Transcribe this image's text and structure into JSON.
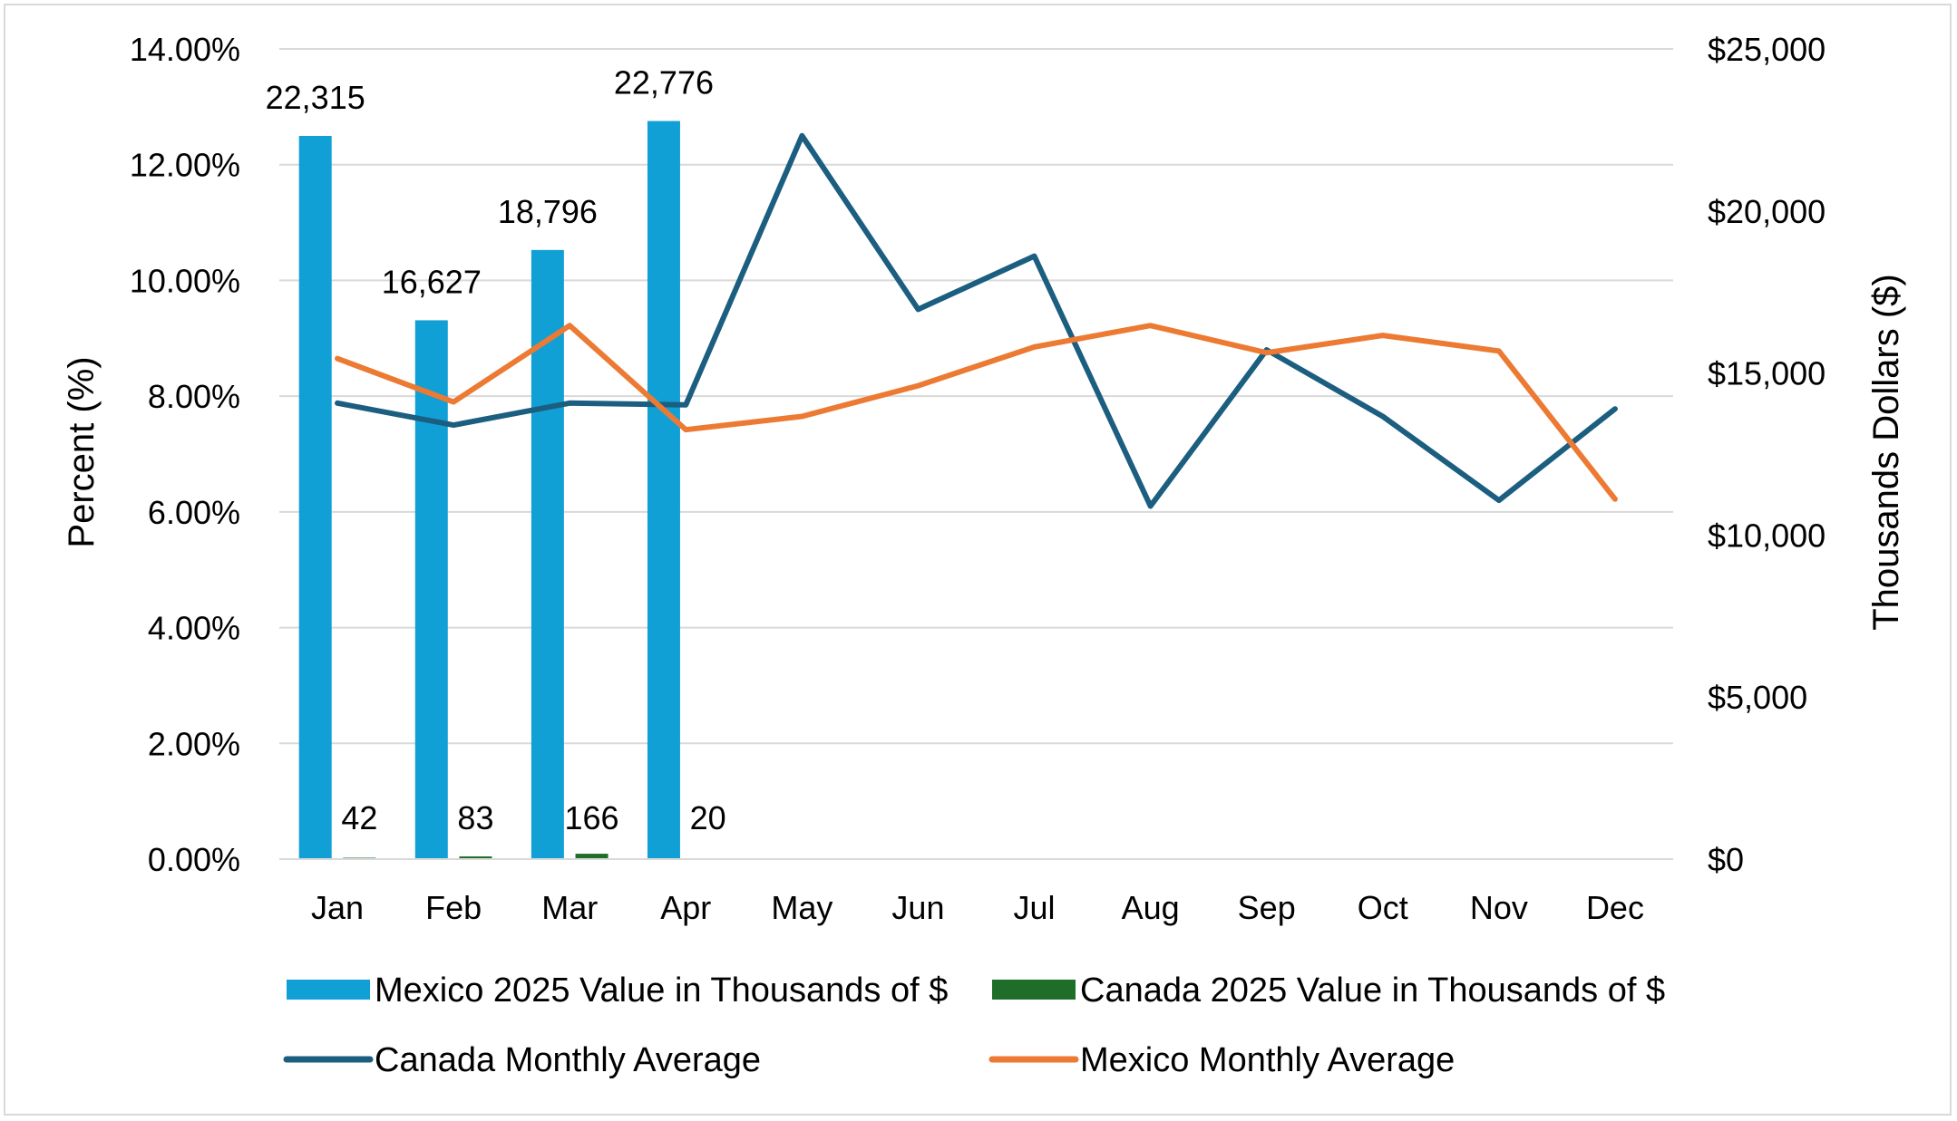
{
  "chart_data": {
    "type": "bar",
    "categories": [
      "Jan",
      "Feb",
      "Mar",
      "Apr",
      "May",
      "Jun",
      "Jul",
      "Aug",
      "Sep",
      "Oct",
      "Nov",
      "Dec"
    ],
    "y_left": {
      "label": "Percent (%)",
      "range": [
        0,
        14
      ],
      "ticks": [
        0,
        2,
        4,
        6,
        8,
        10,
        12,
        14
      ],
      "tick_labels": [
        "0.00%",
        "2.00%",
        "4.00%",
        "6.00%",
        "8.00%",
        "10.00%",
        "12.00%",
        "14.00%"
      ]
    },
    "y_right": {
      "label": "Thousands Dollars ($)",
      "range": [
        0,
        25000
      ],
      "ticks": [
        0,
        5000,
        10000,
        15000,
        20000,
        25000
      ],
      "tick_labels": [
        "$0",
        "$5,000",
        "$10,000",
        "$15,000",
        "$20,000",
        "$25,000"
      ]
    },
    "grid": true,
    "legend_position": "bottom",
    "series": [
      {
        "name": "Mexico 2025 Value in Thousands of $",
        "type": "bar",
        "axis": "right",
        "color": "#11a0d6",
        "values": [
          22315,
          16627,
          18796,
          22776,
          null,
          null,
          null,
          null,
          null,
          null,
          null,
          null
        ],
        "labels": [
          "22,315",
          "16,627",
          "18,796",
          "22,776"
        ]
      },
      {
        "name": "Canada 2025 Value in Thousands of $",
        "type": "bar",
        "axis": "right",
        "color": "#1e6e2a",
        "values": [
          42,
          83,
          166,
          20,
          null,
          null,
          null,
          null,
          null,
          null,
          null,
          null
        ],
        "labels": [
          "42",
          "83",
          "166",
          "20"
        ]
      },
      {
        "name": "Canada Monthly Average",
        "type": "line",
        "axis": "left",
        "color": "#1b5e80",
        "values": [
          7.88,
          7.5,
          7.88,
          7.85,
          12.5,
          9.5,
          10.42,
          6.1,
          8.8,
          7.65,
          6.2,
          7.78
        ]
      },
      {
        "name": "Mexico Monthly Average",
        "type": "line",
        "axis": "left",
        "color": "#ec7a33",
        "values": [
          8.65,
          7.9,
          9.22,
          7.42,
          7.65,
          8.18,
          8.85,
          9.22,
          8.75,
          9.05,
          8.78,
          6.22
        ]
      }
    ]
  }
}
